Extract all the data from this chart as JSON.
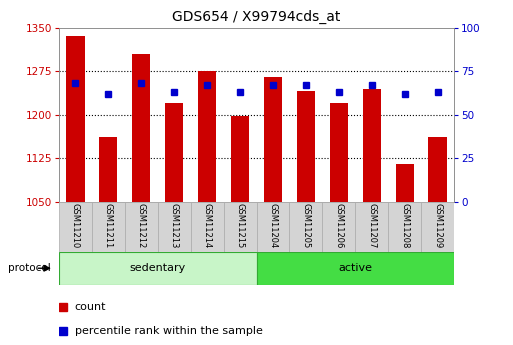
{
  "title": "GDS654 / X99794cds_at",
  "samples": [
    "GSM11210",
    "GSM11211",
    "GSM11212",
    "GSM11213",
    "GSM11214",
    "GSM11215",
    "GSM11204",
    "GSM11205",
    "GSM11206",
    "GSM11207",
    "GSM11208",
    "GSM11209"
  ],
  "count_values": [
    1335,
    1162,
    1305,
    1220,
    1275,
    1198,
    1265,
    1240,
    1220,
    1245,
    1115,
    1162
  ],
  "percentile_values": [
    68,
    62,
    68,
    63,
    67,
    63,
    67,
    67,
    63,
    67,
    62,
    63
  ],
  "ylim_left": [
    1050,
    1350
  ],
  "ylim_right": [
    0,
    100
  ],
  "yticks_left": [
    1050,
    1125,
    1200,
    1275,
    1350
  ],
  "yticks_right": [
    0,
    25,
    50,
    75,
    100
  ],
  "groups": [
    {
      "label": "sedentary",
      "start": 0,
      "end": 6,
      "color": "#c8f5c8"
    },
    {
      "label": "active",
      "start": 6,
      "end": 12,
      "color": "#44dd44"
    }
  ],
  "group_label": "protocol",
  "bar_color": "#cc0000",
  "dot_color": "#0000cc",
  "bar_width": 0.55,
  "tick_color_left": "#cc0000",
  "tick_color_right": "#0000cc",
  "bg_color": "#ffffff",
  "sample_box_color": "#d4d4d4",
  "sample_box_edge": "#aaaaaa",
  "grid_color": "#000000"
}
